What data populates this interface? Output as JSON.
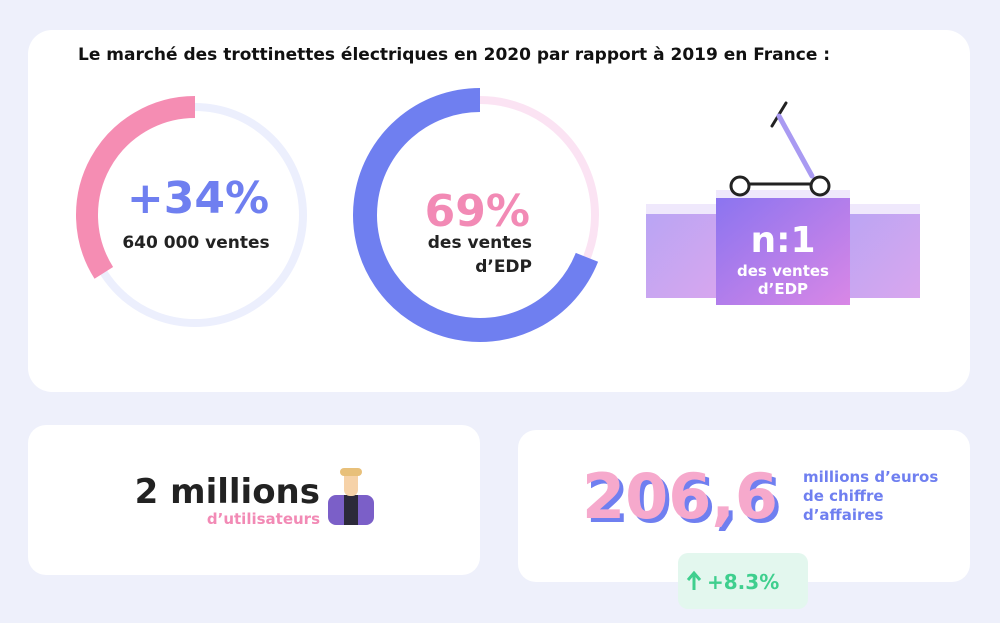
{
  "title": "Le marché des trottinettes électriques en 2020 par rapport à 2019 en France :",
  "stats": [
    {
      "value": 34,
      "label": "+34%",
      "caption": [
        "640 000 ventes"
      ]
    },
    {
      "value": 69,
      "label": "69%",
      "caption": [
        "des ventes",
        "d’EDP"
      ]
    }
  ],
  "rank": {
    "label": "n:1",
    "caption": [
      "des ventes",
      "d’EDP"
    ]
  },
  "users": {
    "label": "2 millions",
    "caption": "d’utilisateurs"
  },
  "revenue": {
    "label": "206,6",
    "caption": [
      "millions d’euros",
      "de chiffre",
      "d’affaires"
    ],
    "change": "+8.3%"
  }
}
